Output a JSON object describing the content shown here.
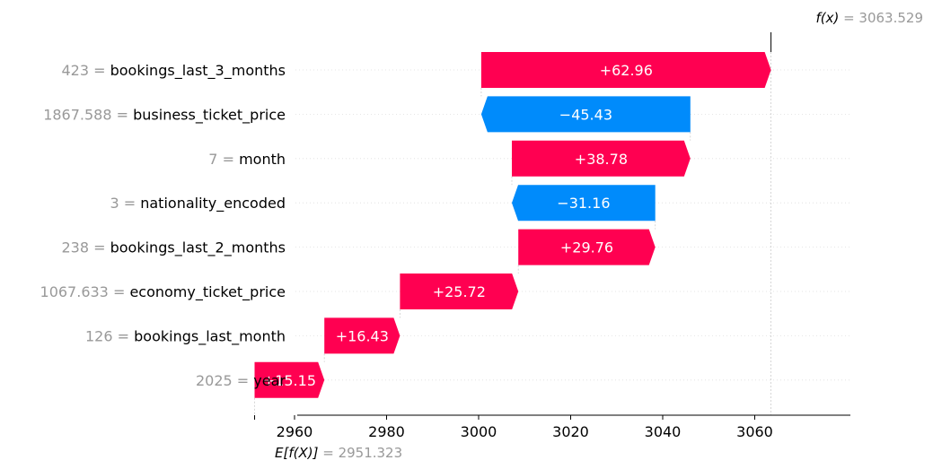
{
  "chart_data": {
    "type": "waterfall",
    "base_value": 2951.323,
    "output_value": 3063.529,
    "base_value_label": {
      "prefix": "E[f(X)]",
      "eq": " = ",
      "value": "2951.323"
    },
    "output_value_label": {
      "prefix": "f(x)",
      "eq": " = ",
      "value": "3063.529"
    },
    "features": [
      {
        "value": "423",
        "name": "bookings_last_3_months",
        "contribution": 62.96,
        "label": "+62.96"
      },
      {
        "value": "1867.588",
        "name": "business_ticket_price",
        "contribution": -45.43,
        "label": "−45.43"
      },
      {
        "value": "7",
        "name": "month",
        "contribution": 38.78,
        "label": "+38.78"
      },
      {
        "value": "3",
        "name": "nationality_encoded",
        "contribution": -31.16,
        "label": "−31.16"
      },
      {
        "value": "238",
        "name": "bookings_last_2_months",
        "contribution": 29.76,
        "label": "+29.76"
      },
      {
        "value": "1067.633",
        "name": "economy_ticket_price",
        "contribution": 25.72,
        "label": "+25.72"
      },
      {
        "value": "126",
        "name": "bookings_last_month",
        "contribution": 16.43,
        "label": "+16.43"
      },
      {
        "value": "2025",
        "name": "year",
        "contribution": 15.15,
        "label": "+15.15"
      }
    ],
    "xticks": [
      2960,
      2980,
      3000,
      3020,
      3040,
      3060
    ],
    "xlim": [
      2950,
      3070
    ],
    "colors": {
      "positive": "#ff0051",
      "negative": "#008bfb",
      "axis": "#000000",
      "muted": "#999999"
    }
  }
}
